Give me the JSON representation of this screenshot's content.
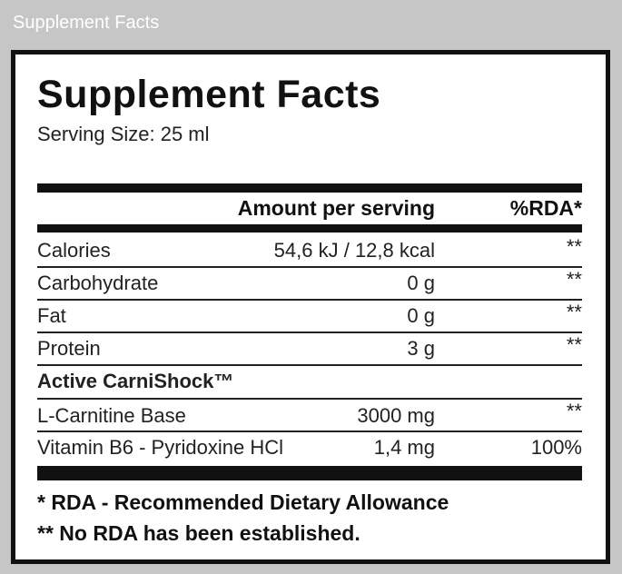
{
  "header": {
    "title": "Supplement Facts"
  },
  "label": {
    "title": "Supplement Facts",
    "serving_size": "Serving Size: 25 ml",
    "columns": [
      "Amount per serving",
      "%RDA*"
    ],
    "rows": [
      [
        "Calories",
        "54,6 kJ / 12,8 kcal",
        "**"
      ],
      [
        "Carbohydrate",
        "0 g",
        "**"
      ],
      [
        "Fat",
        "0 g",
        "**"
      ],
      [
        "Protein",
        "3 g",
        "**"
      ]
    ],
    "section": "Active CarniShock™",
    "section_rows": [
      [
        "L-Carnitine Base",
        "3000 mg",
        "**"
      ],
      [
        "Vitamin B6 - Pyridoxine HCl",
        "1,4 mg",
        "100%"
      ]
    ],
    "footnotes": [
      "* RDA - Recommended Dietary Allowance",
      "** No RDA has been established."
    ]
  }
}
